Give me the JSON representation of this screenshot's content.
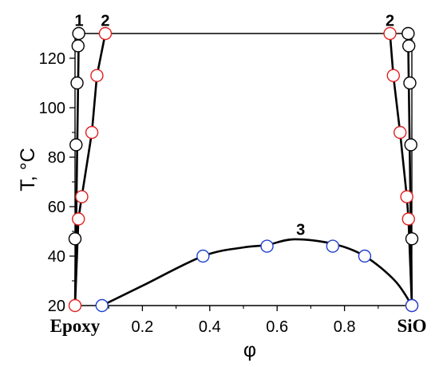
{
  "chart_data": {
    "type": "scatter",
    "xlabel": "φ",
    "ylabel": "T, °C",
    "xlim": [
      0,
      1
    ],
    "ylim": [
      20,
      130
    ],
    "x_ticks": [
      {
        "value": 0,
        "label": "Epoxy",
        "style": "bold"
      },
      {
        "value": 0.2,
        "label": "0.2"
      },
      {
        "value": 0.4,
        "label": "0.4"
      },
      {
        "value": 0.6,
        "label": "0.6"
      },
      {
        "value": 0.8,
        "label": "0.8"
      },
      {
        "value": 1,
        "label": "SiO",
        "style": "bold"
      }
    ],
    "y_ticks": [
      20,
      40,
      60,
      80,
      100,
      120
    ],
    "grid": false,
    "tie_line": {
      "y": 130,
      "x": [
        0.011,
        0.989
      ]
    },
    "series": [
      {
        "name": "1",
        "marker_color": "#000000",
        "x": [
          0,
          0.003,
          0.006,
          0.009,
          0.011,
          0.989,
          0.991,
          0.994,
          0.997,
          1
        ],
        "y": [
          47,
          85,
          110,
          125,
          130,
          130,
          125,
          110,
          85,
          47
        ]
      },
      {
        "name": "2",
        "marker_color": "#e02020",
        "x": [
          0,
          0.01,
          0.02,
          0.05,
          0.065,
          0.09,
          0.935,
          0.945,
          0.965,
          0.985,
          0.99,
          1
        ],
        "y": [
          20,
          55,
          64,
          90,
          113,
          130,
          130,
          113,
          90,
          64,
          55,
          20
        ]
      },
      {
        "name": "3",
        "marker_color": "#2040d0",
        "x": [
          0.08,
          0.38,
          0.57,
          0.765,
          0.86,
          1
        ],
        "y": [
          20,
          40,
          44,
          44,
          40,
          20
        ]
      }
    ],
    "curves": [
      {
        "name": "1",
        "label_pos": [
          0.012,
          133
        ],
        "x": [
          0,
          0.005,
          0.01,
          0.011
        ],
        "y": [
          20,
          70,
          118,
          130
        ]
      },
      {
        "name": "1",
        "x": [
          0.989,
          0.99,
          0.995,
          1
        ],
        "y": [
          130,
          118,
          70,
          20
        ]
      },
      {
        "name": "2",
        "label_pos": [
          0.09,
          133
        ],
        "x": [
          0,
          0.01,
          0.02,
          0.05,
          0.065,
          0.09
        ],
        "y": [
          20,
          55,
          64,
          90,
          113,
          130
        ]
      },
      {
        "name": "2",
        "label_pos": [
          0.935,
          133
        ],
        "x": [
          0.935,
          0.945,
          0.965,
          0.985,
          0.99,
          1
        ],
        "y": [
          130,
          113,
          90,
          64,
          55,
          20
        ]
      },
      {
        "name": "3",
        "label_pos": [
          0.67,
          48.5
        ],
        "x": [
          0.08,
          0.2,
          0.38,
          0.5,
          0.57,
          0.65,
          0.765,
          0.86,
          0.95,
          1
        ],
        "y": [
          20,
          28,
          40,
          43.5,
          44.5,
          46.8,
          45,
          40,
          30,
          20
        ]
      }
    ]
  }
}
